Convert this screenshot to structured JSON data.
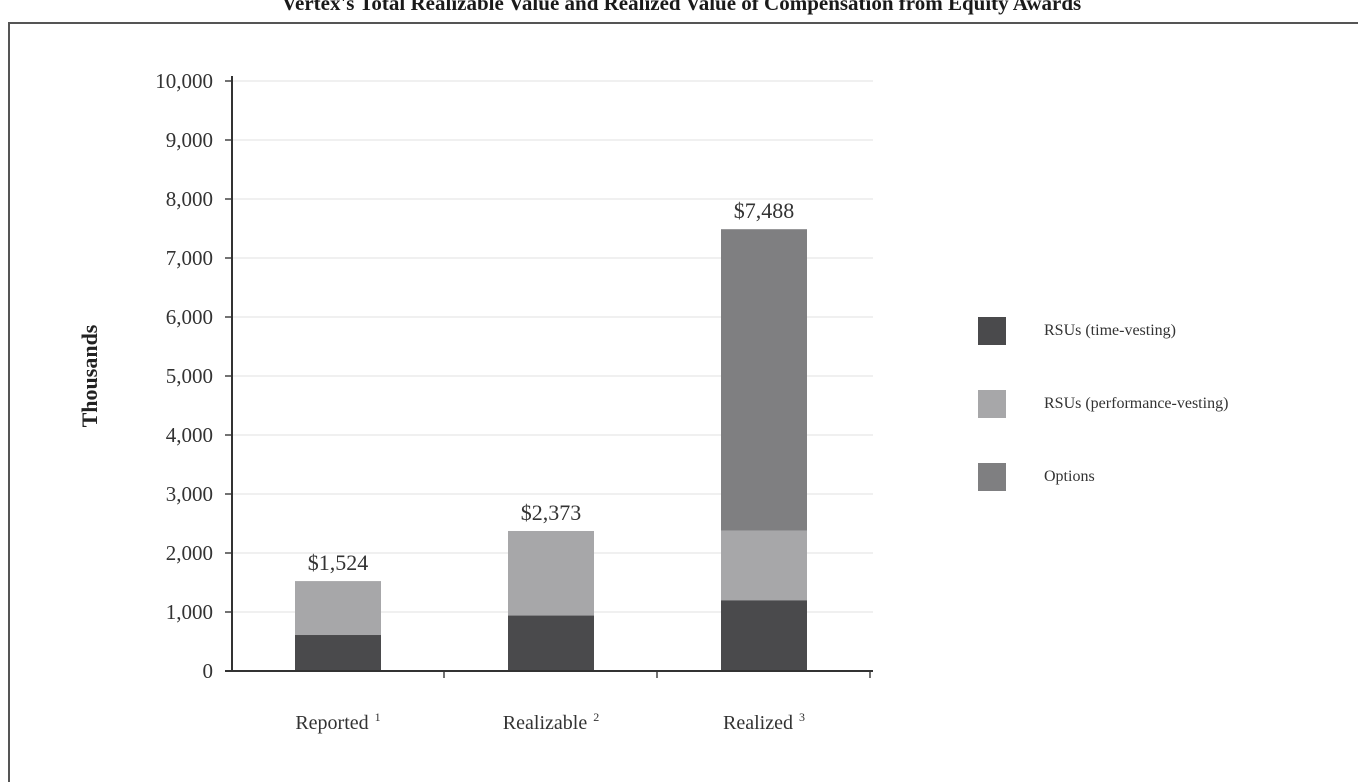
{
  "page_title": "Vertex's Total Realizable Value and Realized Value of Compensation from Equity Awards",
  "chart_data": {
    "type": "bar",
    "stacked": true,
    "categories": [
      "Reported",
      "Realizable",
      "Realized"
    ],
    "category_footnotes": [
      "1",
      "2",
      "3"
    ],
    "series": [
      {
        "name": "RSUs (time-vesting)",
        "values": [
          610,
          940,
          1200
        ],
        "color": "#4a4a4c"
      },
      {
        "name": "RSUs (performance-vesting)",
        "values": [
          914,
          1433,
          1180
        ],
        "color": "#a7a7a9"
      },
      {
        "name": "Options",
        "values": [
          0,
          0,
          5108
        ],
        "color": "#7f7f81"
      }
    ],
    "totals": [
      "$1,524",
      "$2,373",
      "$7,488"
    ],
    "ylabel": "Thousands",
    "xlabel": "",
    "ylim": [
      0,
      10000
    ],
    "yticks": [
      "0",
      "1,000",
      "2,000",
      "3,000",
      "4,000",
      "5,000",
      "6,000",
      "7,000",
      "8,000",
      "9,000",
      "10,000"
    ],
    "grid": true,
    "legend_position": "right"
  }
}
